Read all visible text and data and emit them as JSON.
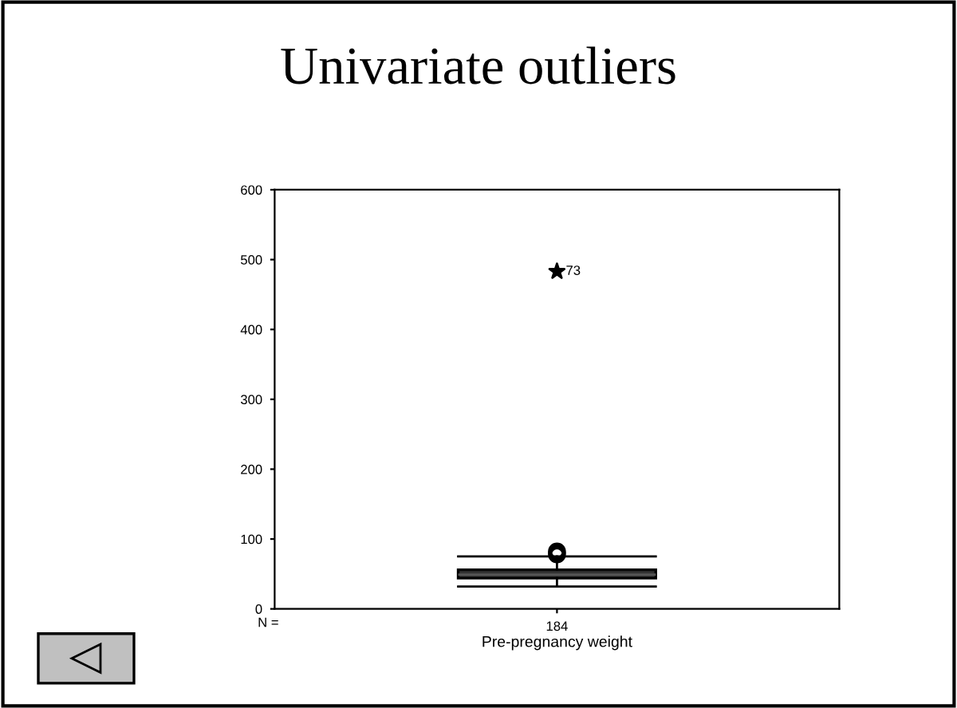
{
  "chart_data": {
    "type": "box",
    "title": "Univariate outliers",
    "xlabel": "Pre-pregnancy weight",
    "categories": [
      "184"
    ],
    "boxes": [
      {
        "low": 32,
        "q1": 44,
        "median": 49,
        "q3": 56,
        "high": 75,
        "outliers": [
          78,
          82
        ]
      }
    ],
    "series": [
      {
        "type": "scatter",
        "x": [
          "184"
        ],
        "values": [
          483
        ],
        "marker": "star",
        "color": "#000000"
      }
    ],
    "annotations": [
      "N =",
      {
        "text": "73",
        "x": "184",
        "y": 483
      }
    ],
    "ylim": [
      0,
      600
    ],
    "yticks": [
      0,
      100,
      200,
      300,
      400,
      500,
      600
    ],
    "grid": false,
    "legend": false
  }
}
